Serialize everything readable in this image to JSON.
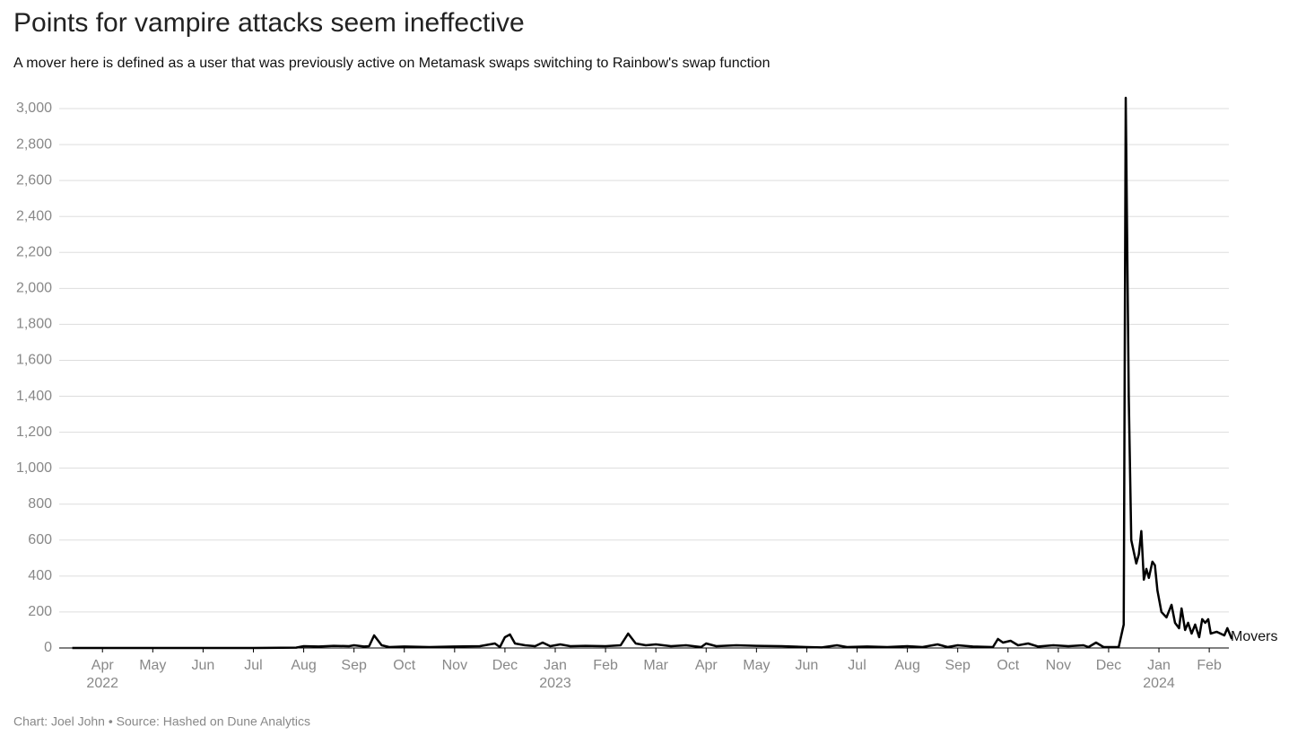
{
  "chart_data": {
    "type": "line",
    "title": "Points for vampire attacks seem ineffective",
    "subtitle": "A mover here is defined as a user that was previously active on Metamask swaps switching to Rainbow's swap function",
    "source": "Chart: Joel John • Source: Hashed on Dune Analytics",
    "x": [
      -0.6,
      3.0,
      3.85,
      4.0,
      4.3,
      4.6,
      4.9,
      5.0,
      5.2,
      5.3,
      5.4,
      5.55,
      5.7,
      6.0,
      6.5,
      7.0,
      7.5,
      7.8,
      7.9,
      8.0,
      8.1,
      8.2,
      8.4,
      8.6,
      8.75,
      8.9,
      9.1,
      9.3,
      9.6,
      10.0,
      10.3,
      10.45,
      10.6,
      10.8,
      11.0,
      11.3,
      11.6,
      11.9,
      12.0,
      12.2,
      12.6,
      13.0,
      13.5,
      14.0,
      14.3,
      14.6,
      14.8,
      15.2,
      15.6,
      16.0,
      16.3,
      16.6,
      16.8,
      17.0,
      17.3,
      17.7,
      17.8,
      17.9,
      18.05,
      18.2,
      18.4,
      18.6,
      18.9,
      19.2,
      19.5,
      19.6,
      19.75,
      19.9,
      20.2,
      20.3,
      20.34,
      20.4,
      20.45,
      20.55,
      20.6,
      20.65,
      20.7,
      20.75,
      20.8,
      20.87,
      20.92,
      20.97,
      21.05,
      21.15,
      21.25,
      21.32,
      21.4,
      21.45,
      21.52,
      21.58,
      21.65,
      21.72,
      21.8,
      21.86,
      21.92,
      21.98,
      22.03,
      22.15,
      22.3,
      22.36,
      22.45
    ],
    "series": [
      {
        "name": "Movers",
        "color": "#000000",
        "values": [
          0,
          0,
          2,
          10,
          8,
          12,
          10,
          15,
          8,
          10,
          70,
          15,
          5,
          8,
          5,
          8,
          10,
          25,
          5,
          60,
          75,
          25,
          15,
          10,
          30,
          10,
          20,
          10,
          12,
          10,
          15,
          80,
          25,
          15,
          20,
          10,
          15,
          5,
          25,
          10,
          15,
          12,
          10,
          5,
          3,
          15,
          5,
          8,
          5,
          10,
          5,
          20,
          5,
          15,
          8,
          5,
          50,
          30,
          40,
          15,
          25,
          8,
          15,
          10,
          15,
          5,
          30,
          5,
          5,
          130,
          3060,
          1400,
          600,
          470,
          520,
          650,
          380,
          440,
          390,
          480,
          460,
          320,
          200,
          170,
          240,
          140,
          110,
          220,
          100,
          140,
          80,
          130,
          60,
          160,
          140,
          160,
          80,
          90,
          70,
          110,
          50
        ]
      }
    ],
    "xlim": [
      -0.86,
      22.39
    ],
    "xticks": [
      {
        "value": 0,
        "label": "Apr"
      },
      {
        "value": 1,
        "label": "May"
      },
      {
        "value": 2,
        "label": "Jun"
      },
      {
        "value": 3,
        "label": "Jul"
      },
      {
        "value": 4,
        "label": "Aug"
      },
      {
        "value": 5,
        "label": "Sep"
      },
      {
        "value": 6,
        "label": "Oct"
      },
      {
        "value": 7,
        "label": "Nov"
      },
      {
        "value": 8,
        "label": "Dec"
      },
      {
        "value": 9,
        "label": "Jan"
      },
      {
        "value": 10,
        "label": "Feb"
      },
      {
        "value": 11,
        "label": "Mar"
      },
      {
        "value": 12,
        "label": "Apr"
      },
      {
        "value": 13,
        "label": "May"
      },
      {
        "value": 14,
        "label": "Jun"
      },
      {
        "value": 15,
        "label": "Jul"
      },
      {
        "value": 16,
        "label": "Aug"
      },
      {
        "value": 17,
        "label": "Sep"
      },
      {
        "value": 18,
        "label": "Oct"
      },
      {
        "value": 19,
        "label": "Nov"
      },
      {
        "value": 20,
        "label": "Dec"
      },
      {
        "value": 21,
        "label": "Jan"
      },
      {
        "value": 22,
        "label": "Feb"
      }
    ],
    "xtick_years": [
      {
        "value": 0,
        "label": "2022"
      },
      {
        "value": 9,
        "label": "2023"
      },
      {
        "value": 21,
        "label": "2024"
      }
    ],
    "ylim": [
      0,
      3080
    ],
    "yticks": [
      0,
      200,
      400,
      600,
      800,
      {
        "value": 1000,
        "label": "1,000"
      },
      {
        "value": 1200,
        "label": "1,200"
      },
      {
        "value": 1400,
        "label": "1,400"
      },
      {
        "value": 1600,
        "label": "1,600"
      },
      {
        "value": 1800,
        "label": "1,800"
      },
      {
        "value": 2000,
        "label": "2,000"
      },
      {
        "value": 2200,
        "label": "2,200"
      },
      {
        "value": 2400,
        "label": "2,400"
      },
      {
        "value": 2600,
        "label": "2,600"
      },
      {
        "value": 2800,
        "label": "2,800"
      },
      {
        "value": 3000,
        "label": "3,000"
      }
    ],
    "grid": true
  }
}
